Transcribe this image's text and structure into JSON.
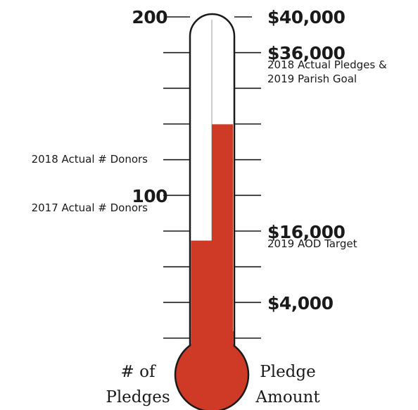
{
  "chart_data": {
    "type": "thermometer",
    "left_axis": {
      "label_lines": [
        "# of",
        "Pledges"
      ],
      "range": [
        0,
        200
      ],
      "tick_count": 11,
      "printed_value_labels": [
        "200",
        "100"
      ]
    },
    "right_axis": {
      "label_lines": [
        "Pledge",
        "Amount"
      ],
      "range": [
        0,
        40000
      ],
      "tick_count": 11,
      "printed_value_labels": [
        "$40,000",
        "$36,000",
        "$16,000",
        "$4,000"
      ]
    },
    "fills": [
      {
        "axis": "left",
        "value": 75,
        "color": "#cf3a26"
      },
      {
        "axis": "right",
        "value": 28000,
        "color": "#cf3a26"
      }
    ],
    "annotations": [
      {
        "axis": "left",
        "value": 200,
        "lines": [
          "200"
        ],
        "bold": true
      },
      {
        "axis": "left",
        "value": 120,
        "lines": [
          "2018 Actual # Donors"
        ],
        "bold": false
      },
      {
        "axis": "left",
        "value": 100,
        "lines": [
          "100"
        ],
        "bold": true
      },
      {
        "axis": "left",
        "value": 100,
        "lines": [
          "2017 Actual # Donors"
        ],
        "bold": false
      },
      {
        "axis": "right",
        "value": 40000,
        "lines": [
          "$40,000"
        ],
        "bold": true
      },
      {
        "axis": "right",
        "value": 36000,
        "lines": [
          "$36,000"
        ],
        "bold": true
      },
      {
        "axis": "right",
        "value": 36000,
        "lines": [
          "2018 Actual Pledges &",
          "2019 Parish Goal"
        ],
        "bold": false
      },
      {
        "axis": "right",
        "value": 16000,
        "lines": [
          "$16,000"
        ],
        "bold": true
      },
      {
        "axis": "right",
        "value": 16000,
        "lines": [
          "2019 AOD Target"
        ],
        "bold": false
      },
      {
        "axis": "right",
        "value": 4000,
        "lines": [
          "$4,000"
        ],
        "bold": true
      }
    ],
    "colors": {
      "mercury": "#cf3a26",
      "outline": "#1a1a1a",
      "tube": "#ffffff"
    }
  }
}
